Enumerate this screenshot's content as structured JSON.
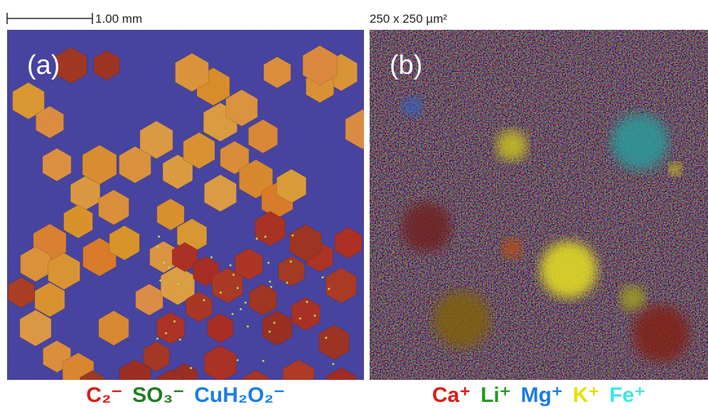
{
  "panel_a": {
    "scale_bar": "1.00 mm",
    "label": "(a)",
    "legend": [
      {
        "text": "C₂⁻",
        "color": "#e01a12"
      },
      {
        "text": "SO₃⁻",
        "color": "#1f7d1f"
      },
      {
        "text": "CuH₂O₂⁻",
        "color": "#1a7de6"
      }
    ]
  },
  "panel_b": {
    "scale_note": "250 x 250 µm²",
    "label": "(b)",
    "legend": [
      {
        "text": "Ca⁺",
        "color": "#e01a12"
      },
      {
        "text": "Li⁺",
        "color": "#1f9a1f"
      },
      {
        "text": "Mg⁺",
        "color": "#1a7de6"
      },
      {
        "text": "K⁺",
        "color": "#e6e000"
      },
      {
        "text": "Fe⁺",
        "color": "#3fe6e6"
      }
    ]
  }
}
